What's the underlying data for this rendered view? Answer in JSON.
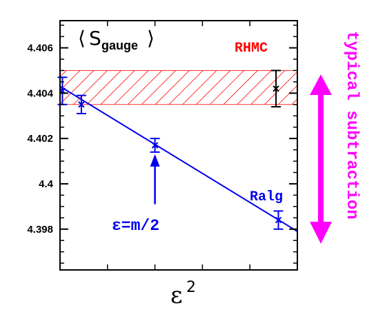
{
  "chart_data": {
    "type": "scatter",
    "title": "",
    "xlabel": "ε",
    "xlabel_superscript": "2",
    "ylabel": "",
    "xlim": [
      0,
      1
    ],
    "ylim": [
      4.3962,
      4.4072
    ],
    "yticks": [
      4.398,
      4.4,
      4.402,
      4.404,
      4.406
    ],
    "ytick_labels": [
      "4.398",
      "4.4",
      "4.402",
      "4.404",
      "4.406"
    ],
    "xticks_minor": [
      0.2,
      0.4,
      0.6,
      0.8
    ],
    "grid": false,
    "legend": "none",
    "observable": {
      "main": "S",
      "subscript": "gauge",
      "bracket_left": "⟨",
      "bracket_right": "⟩"
    },
    "series": [
      {
        "name": "Ralg",
        "color": "#0000ee",
        "marker": "x",
        "points": [
          {
            "x": 0.01,
            "y": 4.4041,
            "err": 0.0006
          },
          {
            "x": 0.09,
            "y": 4.4035,
            "err": 0.0004
          },
          {
            "x": 0.4,
            "y": 4.4017,
            "err": 0.0003
          },
          {
            "x": 0.92,
            "y": 4.3984,
            "err": 0.0004
          }
        ],
        "fit_line": {
          "x": [
            0.0,
            1.0
          ],
          "y": [
            4.4043,
            4.3979
          ]
        }
      },
      {
        "name": "RHMC",
        "color": "#ff0000",
        "band": {
          "ymin": 4.4035,
          "ymax": 4.405,
          "xmin": 0.0,
          "xmax": 1.0
        },
        "marker_point": {
          "x": 0.91,
          "y": 4.4042,
          "err": 0.0008,
          "color": "#000000"
        }
      }
    ],
    "annotations": [
      {
        "text": "RHMC",
        "color": "#ff0000"
      },
      {
        "text": "Ralg",
        "color": "#0000ee"
      },
      {
        "text": "ε=m/2",
        "color": "#0000ee",
        "arrow_to": {
          "x": 0.4,
          "y": 4.40155
        },
        "arrow_from": {
          "x": 0.4,
          "y": 4.3991
        }
      },
      {
        "text": "typical subtraction",
        "color": "#ff00ff"
      }
    ]
  }
}
